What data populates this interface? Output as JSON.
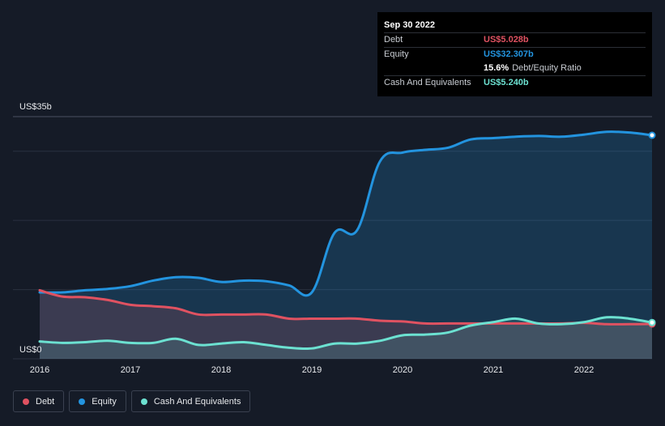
{
  "tooltip": {
    "date": "Sep 30 2022",
    "debt_label": "Debt",
    "debt_value": "US$5.028b",
    "equity_label": "Equity",
    "equity_value": "US$32.307b",
    "ratio_value": "15.6%",
    "ratio_label": "Debt/Equity Ratio",
    "cash_label": "Cash And Equivalents",
    "cash_value": "US$5.240b"
  },
  "legend": [
    {
      "label": "Debt",
      "color": "#e05261"
    },
    {
      "label": "Equity",
      "color": "#2394df"
    },
    {
      "label": "Cash And Equivalents",
      "color": "#6ce1d1"
    }
  ],
  "chart_data": {
    "type": "area",
    "y_top_label": "US$35b",
    "y_bottom_label": "US$0",
    "ylim": [
      0,
      35
    ],
    "xlim": [
      2016.0,
      2022.75
    ],
    "x_ticks": [
      "2016",
      "2017",
      "2018",
      "2019",
      "2020",
      "2021",
      "2022"
    ],
    "grid": true,
    "series": [
      {
        "name": "Debt",
        "color": "#e05261",
        "x": [
          2016.0,
          2016.25,
          2016.5,
          2016.75,
          2017.0,
          2017.25,
          2017.5,
          2017.75,
          2018.0,
          2018.25,
          2018.5,
          2018.75,
          2019.0,
          2019.25,
          2019.5,
          2019.75,
          2020.0,
          2020.25,
          2020.5,
          2020.75,
          2021.0,
          2021.25,
          2021.5,
          2021.75,
          2022.0,
          2022.25,
          2022.5,
          2022.75
        ],
        "y": [
          9.9,
          9.0,
          8.9,
          8.5,
          7.8,
          7.6,
          7.3,
          6.4,
          6.4,
          6.4,
          6.4,
          5.8,
          5.8,
          5.8,
          5.8,
          5.5,
          5.4,
          5.1,
          5.1,
          5.1,
          5.1,
          5.1,
          5.1,
          5.1,
          5.2,
          5.0,
          5.0,
          5.028
        ]
      },
      {
        "name": "Equity",
        "color": "#2394df",
        "x": [
          2016.0,
          2016.25,
          2016.5,
          2016.75,
          2017.0,
          2017.25,
          2017.5,
          2017.75,
          2018.0,
          2018.25,
          2018.5,
          2018.75,
          2019.0,
          2019.25,
          2019.5,
          2019.75,
          2020.0,
          2020.25,
          2020.5,
          2020.75,
          2021.0,
          2021.25,
          2021.5,
          2021.75,
          2022.0,
          2022.25,
          2022.5,
          2022.75
        ],
        "y": [
          9.6,
          9.6,
          9.9,
          10.1,
          10.5,
          11.3,
          11.8,
          11.7,
          11.1,
          11.3,
          11.2,
          10.6,
          9.6,
          18.2,
          18.6,
          28.5,
          29.8,
          30.2,
          30.5,
          31.7,
          31.9,
          32.1,
          32.2,
          32.1,
          32.4,
          32.8,
          32.7,
          32.307
        ]
      },
      {
        "name": "Cash And Equivalents",
        "color": "#6ce1d1",
        "x": [
          2016.0,
          2016.25,
          2016.5,
          2016.75,
          2017.0,
          2017.25,
          2017.5,
          2017.75,
          2018.0,
          2018.25,
          2018.5,
          2018.75,
          2019.0,
          2019.25,
          2019.5,
          2019.75,
          2020.0,
          2020.25,
          2020.5,
          2020.75,
          2021.0,
          2021.25,
          2021.5,
          2021.75,
          2022.0,
          2022.25,
          2022.5,
          2022.75
        ],
        "y": [
          2.5,
          2.3,
          2.4,
          2.6,
          2.3,
          2.3,
          2.9,
          2.0,
          2.2,
          2.4,
          2.0,
          1.6,
          1.5,
          2.2,
          2.2,
          2.6,
          3.4,
          3.5,
          3.8,
          4.8,
          5.3,
          5.8,
          5.1,
          5.0,
          5.3,
          6.0,
          5.8,
          5.24
        ]
      }
    ]
  }
}
